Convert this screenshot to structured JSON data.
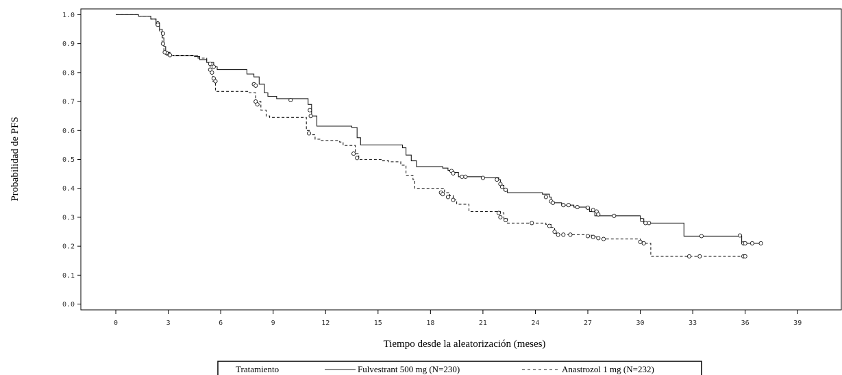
{
  "chart_data": {
    "type": "line",
    "xlabel": "Tiempo desde la aleatorización (meses)",
    "ylabel": "Probabilidad de PFS",
    "xlim": [
      -2,
      41.5
    ],
    "ylim": [
      -0.02,
      1.02
    ],
    "x_ticks": [
      0,
      3,
      6,
      9,
      12,
      15,
      18,
      21,
      24,
      27,
      30,
      33,
      36,
      39
    ],
    "x_tick_labels": [
      "0",
      "3",
      "6",
      "9",
      "12",
      "15",
      "18",
      "21",
      "24",
      "27",
      "30",
      "33",
      "36",
      "39"
    ],
    "y_ticks": [
      0.0,
      0.1,
      0.2,
      0.3,
      0.4,
      0.5,
      0.6,
      0.7,
      0.8,
      0.9,
      1.0
    ],
    "y_tick_labels": [
      "0.0",
      "0.1",
      "0.2",
      "0.3",
      "0.4",
      "0.5",
      "0.6",
      "0.7",
      "0.8",
      "0.9",
      "1.0"
    ],
    "grid": false,
    "legend_position": "bottom",
    "legend_title": "Tratamiento",
    "series": [
      {
        "name": "Fulvestrant 500 mg (N=230)",
        "line_style": "solid",
        "color": "#1a1a1a",
        "steps": [
          [
            0,
            1.0
          ],
          [
            1.3,
            0.995
          ],
          [
            2.0,
            0.985
          ],
          [
            2.3,
            0.97
          ],
          [
            2.5,
            0.95
          ],
          [
            2.65,
            0.92
          ],
          [
            2.75,
            0.89
          ],
          [
            2.85,
            0.87
          ],
          [
            3.1,
            0.86
          ],
          [
            3.3,
            0.858
          ],
          [
            4.5,
            0.855
          ],
          [
            4.8,
            0.845
          ],
          [
            5.2,
            0.835
          ],
          [
            5.6,
            0.82
          ],
          [
            5.8,
            0.81
          ],
          [
            7.5,
            0.795
          ],
          [
            7.9,
            0.785
          ],
          [
            8.2,
            0.76
          ],
          [
            8.5,
            0.73
          ],
          [
            8.7,
            0.718
          ],
          [
            9.2,
            0.71
          ],
          [
            11.0,
            0.69
          ],
          [
            11.2,
            0.65
          ],
          [
            11.5,
            0.615
          ],
          [
            13.5,
            0.61
          ],
          [
            13.8,
            0.575
          ],
          [
            14.0,
            0.55
          ],
          [
            16.4,
            0.54
          ],
          [
            16.6,
            0.515
          ],
          [
            16.9,
            0.495
          ],
          [
            17.2,
            0.475
          ],
          [
            18.7,
            0.47
          ],
          [
            19.0,
            0.462
          ],
          [
            19.2,
            0.455
          ],
          [
            19.6,
            0.44
          ],
          [
            21.0,
            0.437
          ],
          [
            21.9,
            0.43
          ],
          [
            22.0,
            0.41
          ],
          [
            22.2,
            0.392
          ],
          [
            22.4,
            0.385
          ],
          [
            24.4,
            0.38
          ],
          [
            24.8,
            0.37
          ],
          [
            24.9,
            0.35
          ],
          [
            25.5,
            0.342
          ],
          [
            26.2,
            0.335
          ],
          [
            26.9,
            0.33
          ],
          [
            27.1,
            0.32
          ],
          [
            27.4,
            0.305
          ],
          [
            28.5,
            0.305
          ],
          [
            30.0,
            0.295
          ],
          [
            30.2,
            0.28
          ],
          [
            31.6,
            0.28
          ],
          [
            32.5,
            0.235
          ],
          [
            35.4,
            0.235
          ],
          [
            35.8,
            0.21
          ],
          [
            36.8,
            0.21
          ]
        ],
        "censored": [
          [
            2.4,
            0.97
          ],
          [
            2.7,
            0.935
          ],
          [
            2.9,
            0.868
          ],
          [
            3.1,
            0.86
          ],
          [
            5.4,
            0.83
          ],
          [
            5.6,
            0.82
          ],
          [
            7.9,
            0.76
          ],
          [
            8.0,
            0.755
          ],
          [
            10.0,
            0.705
          ],
          [
            11.1,
            0.67
          ],
          [
            11.15,
            0.65
          ],
          [
            19.2,
            0.46
          ],
          [
            19.3,
            0.452
          ],
          [
            19.8,
            0.44
          ],
          [
            20.0,
            0.44
          ],
          [
            21.0,
            0.436
          ],
          [
            21.8,
            0.43
          ],
          [
            22.0,
            0.415
          ],
          [
            22.1,
            0.405
          ],
          [
            22.3,
            0.395
          ],
          [
            24.6,
            0.37
          ],
          [
            24.9,
            0.355
          ],
          [
            25.0,
            0.35
          ],
          [
            25.6,
            0.342
          ],
          [
            25.9,
            0.342
          ],
          [
            26.4,
            0.335
          ],
          [
            27.0,
            0.333
          ],
          [
            27.3,
            0.325
          ],
          [
            27.5,
            0.32
          ],
          [
            27.6,
            0.31
          ],
          [
            28.5,
            0.305
          ],
          [
            30.1,
            0.29
          ],
          [
            30.3,
            0.28
          ],
          [
            30.5,
            0.28
          ],
          [
            33.5,
            0.235
          ],
          [
            35.7,
            0.237
          ],
          [
            35.9,
            0.21
          ],
          [
            36.0,
            0.21
          ],
          [
            36.4,
            0.21
          ],
          [
            36.9,
            0.21
          ]
        ]
      },
      {
        "name": "Anastrozol 1 mg (N=232)",
        "line_style": "dashed",
        "color": "#1a1a1a",
        "steps": [
          [
            0,
            1.0
          ],
          [
            1.3,
            0.995
          ],
          [
            2.0,
            0.985
          ],
          [
            2.3,
            0.965
          ],
          [
            2.5,
            0.94
          ],
          [
            2.65,
            0.9
          ],
          [
            2.75,
            0.87
          ],
          [
            2.9,
            0.86
          ],
          [
            4.7,
            0.85
          ],
          [
            5.2,
            0.835
          ],
          [
            5.4,
            0.8
          ],
          [
            5.55,
            0.77
          ],
          [
            5.7,
            0.735
          ],
          [
            7.6,
            0.73
          ],
          [
            8.0,
            0.7
          ],
          [
            8.3,
            0.67
          ],
          [
            8.6,
            0.65
          ],
          [
            8.8,
            0.645
          ],
          [
            10.9,
            0.6
          ],
          [
            11.1,
            0.585
          ],
          [
            11.4,
            0.57
          ],
          [
            11.7,
            0.565
          ],
          [
            12.8,
            0.56
          ],
          [
            13.0,
            0.548
          ],
          [
            13.7,
            0.52
          ],
          [
            13.9,
            0.5
          ],
          [
            15.2,
            0.495
          ],
          [
            15.6,
            0.492
          ],
          [
            16.3,
            0.48
          ],
          [
            16.6,
            0.445
          ],
          [
            17.0,
            0.43
          ],
          [
            17.1,
            0.4
          ],
          [
            18.5,
            0.4
          ],
          [
            18.8,
            0.385
          ],
          [
            19.1,
            0.375
          ],
          [
            19.3,
            0.36
          ],
          [
            19.5,
            0.345
          ],
          [
            20.2,
            0.32
          ],
          [
            22.0,
            0.315
          ],
          [
            22.2,
            0.295
          ],
          [
            22.4,
            0.28
          ],
          [
            24.6,
            0.275
          ],
          [
            24.9,
            0.265
          ],
          [
            25.1,
            0.245
          ],
          [
            25.3,
            0.24
          ],
          [
            27.0,
            0.238
          ],
          [
            27.2,
            0.232
          ],
          [
            27.6,
            0.225
          ],
          [
            29.7,
            0.225
          ],
          [
            30.0,
            0.215
          ],
          [
            30.3,
            0.21
          ],
          [
            30.6,
            0.165
          ],
          [
            36.0,
            0.165
          ]
        ],
        "censored": [
          [
            2.4,
            0.965
          ],
          [
            2.7,
            0.9
          ],
          [
            2.8,
            0.87
          ],
          [
            5.4,
            0.81
          ],
          [
            5.5,
            0.8
          ],
          [
            5.6,
            0.78
          ],
          [
            5.7,
            0.77
          ],
          [
            8.0,
            0.7
          ],
          [
            8.1,
            0.69
          ],
          [
            11.05,
            0.59
          ],
          [
            13.6,
            0.52
          ],
          [
            13.8,
            0.505
          ],
          [
            18.6,
            0.385
          ],
          [
            18.7,
            0.38
          ],
          [
            19.0,
            0.37
          ],
          [
            19.3,
            0.36
          ],
          [
            21.9,
            0.315
          ],
          [
            22.0,
            0.3
          ],
          [
            22.3,
            0.29
          ],
          [
            23.8,
            0.28
          ],
          [
            24.8,
            0.27
          ],
          [
            25.1,
            0.25
          ],
          [
            25.3,
            0.24
          ],
          [
            25.6,
            0.24
          ],
          [
            26.0,
            0.24
          ],
          [
            27.0,
            0.235
          ],
          [
            27.3,
            0.232
          ],
          [
            27.6,
            0.228
          ],
          [
            27.9,
            0.225
          ],
          [
            30.0,
            0.215
          ],
          [
            30.2,
            0.21
          ],
          [
            32.8,
            0.165
          ],
          [
            33.4,
            0.165
          ],
          [
            35.9,
            0.165
          ],
          [
            36.0,
            0.165
          ]
        ]
      }
    ]
  }
}
